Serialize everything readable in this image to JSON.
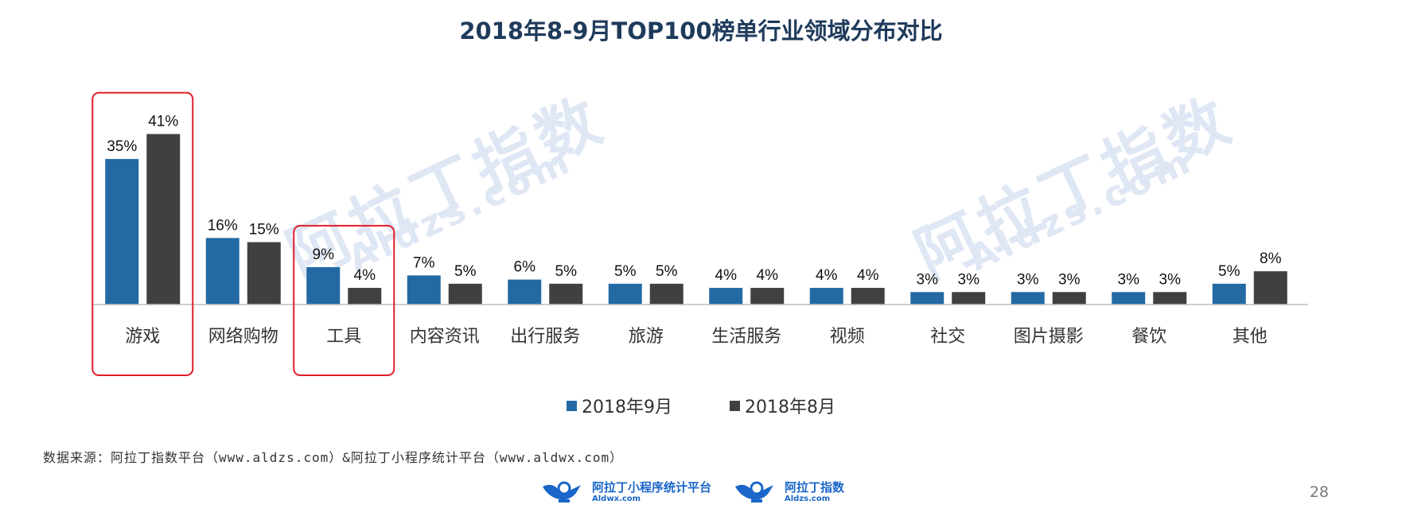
{
  "slide": {
    "title": "2018年8-9月TOP100榜单行业领域分布对比",
    "source": "数据来源：阿拉丁指数平台（www.aldzs.com）&阿拉丁小程序统计平台（www.aldwx.com）",
    "page_number": "28",
    "watermark_text": "阿拉丁指数",
    "watermark_url": "Aldzs.com",
    "logos": [
      {
        "name": "阿拉丁小程序统计平台",
        "url": "Aldwx.com"
      },
      {
        "name": "阿拉丁指数",
        "url": "Aldzs.com"
      }
    ],
    "highlight_color": "#e11d2a",
    "highlighted_categories": [
      "游戏",
      "工具"
    ]
  },
  "chart_data": {
    "type": "bar",
    "title": "2018年8-9月TOP100榜单行业领域分布对比",
    "categories": [
      "游戏",
      "网络购物",
      "工具",
      "内容资讯",
      "出行服务",
      "旅游",
      "生活服务",
      "视频",
      "社交",
      "图片摄影",
      "餐饮",
      "其他"
    ],
    "series": [
      {
        "name": "2018年9月",
        "color": "#236aa4",
        "values": [
          35,
          16,
          9,
          7,
          6,
          5,
          4,
          4,
          3,
          3,
          3,
          5
        ],
        "labels": [
          "35%",
          "16%",
          "9%",
          "7%",
          "6%",
          "5%",
          "4%",
          "4%",
          "3%",
          "3%",
          "3%",
          "5%"
        ]
      },
      {
        "name": "2018年8月",
        "color": "#404040",
        "values": [
          41,
          15,
          4,
          5,
          5,
          5,
          4,
          4,
          3,
          3,
          3,
          8
        ],
        "labels": [
          "41%",
          "15%",
          "4%",
          "5%",
          "5%",
          "5%",
          "4%",
          "4%",
          "3%",
          "3%",
          "3%",
          "8%"
        ]
      }
    ],
    "unit": "%",
    "legend_position": "bottom",
    "grid": false
  }
}
